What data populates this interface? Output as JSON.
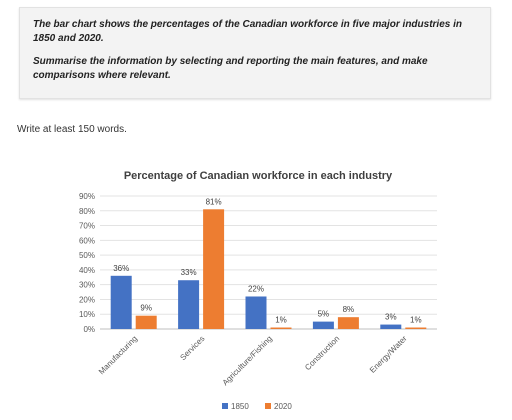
{
  "task": {
    "paragraph1": "The bar chart shows the percentages of the Canadian workforce in five major industries in 1850 and 2020.",
    "paragraph2": "Summarise the information by selecting and reporting the main features, and make comparisons where relevant."
  },
  "instruction": "Write at least 150 words.",
  "chart_data": {
    "type": "bar",
    "title": "Percentage of Canadian workforce in each industry",
    "xlabel": "",
    "ylabel": "",
    "categories": [
      "Manufacturing",
      "Services",
      "Agriculture/Fishing",
      "Construction",
      "Energy/Water"
    ],
    "series": [
      {
        "name": "1850",
        "color": "#4472c4",
        "values": [
          36,
          33,
          22,
          5,
          3
        ]
      },
      {
        "name": "2020",
        "color": "#ed7d31",
        "values": [
          9,
          81,
          1,
          8,
          1
        ]
      }
    ],
    "ylim": [
      0,
      90
    ],
    "yticks": [
      "0%",
      "10%",
      "20%",
      "30%",
      "40%",
      "50%",
      "60%",
      "70%",
      "80%",
      "90%"
    ],
    "data_labels": [
      [
        "36%",
        "33%",
        "22%",
        "5%",
        "3%"
      ],
      [
        "9%",
        "81%",
        "1%",
        "8%",
        "1%"
      ]
    ],
    "grid": true,
    "legend": "bottom"
  }
}
